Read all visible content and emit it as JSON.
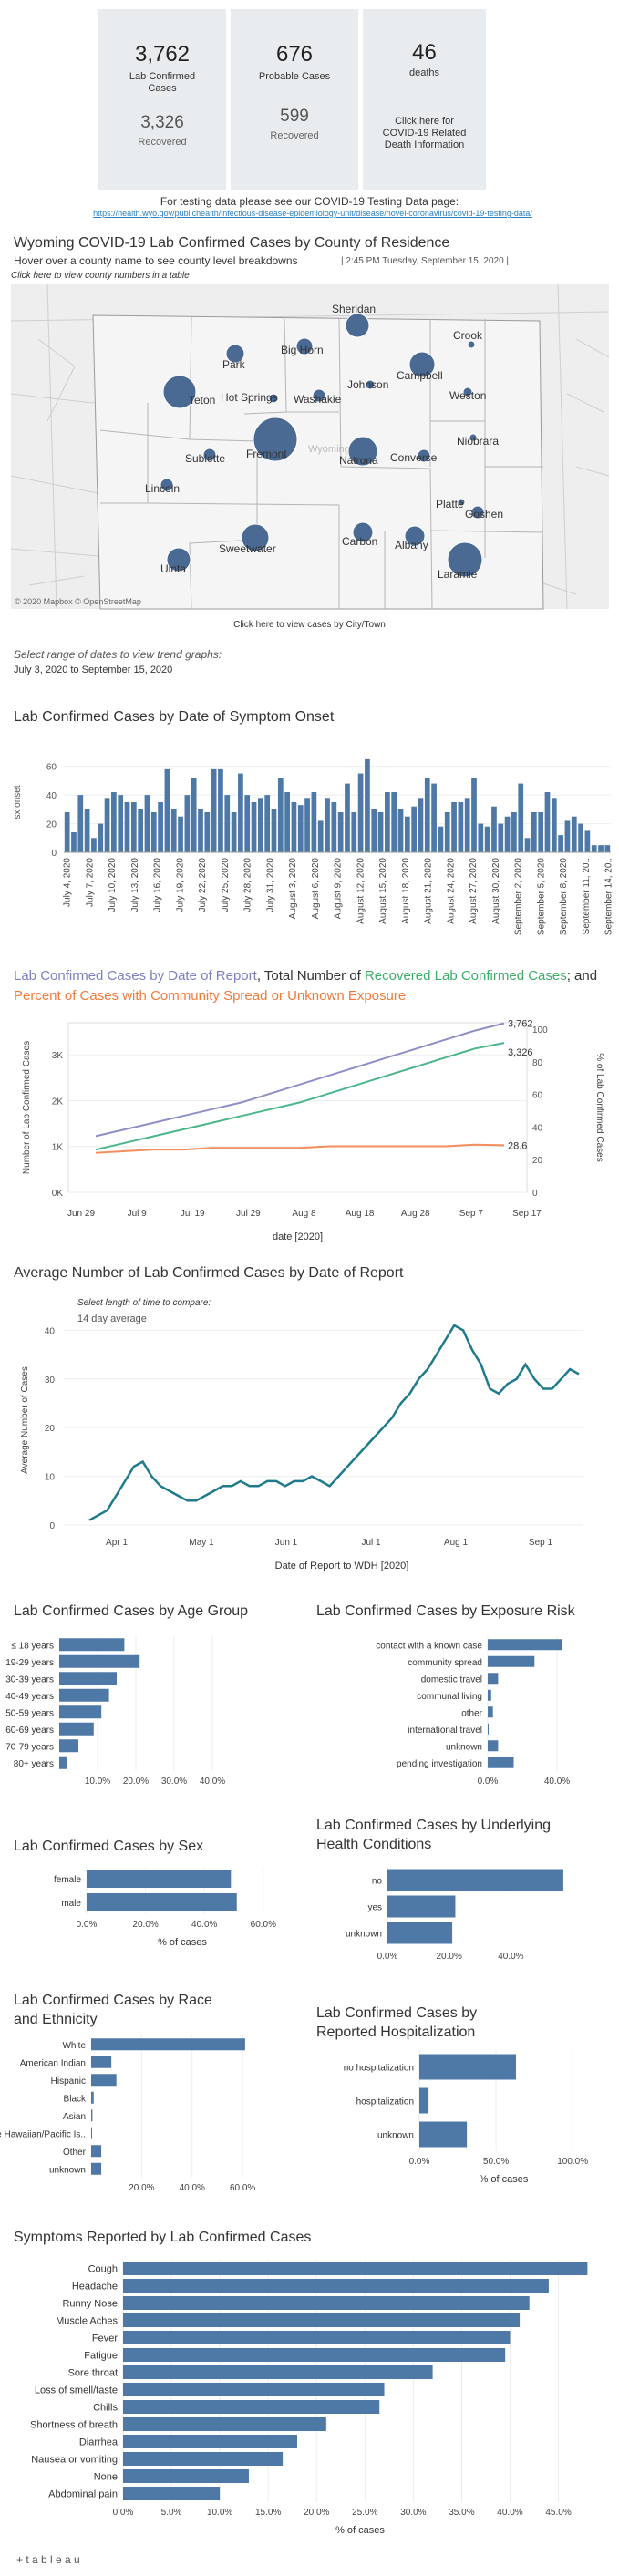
{
  "stats": {
    "lab_confirmed": "3,762",
    "lab_confirmed_label": "Lab Confirmed Cases",
    "recovered": "3,326",
    "recovered_label": "Recovered",
    "probable": "676",
    "probable_label": "Probable Cases",
    "probable_recovered": "599",
    "probable_recovered_label": "Recovered",
    "deaths": "46",
    "deaths_label": "deaths",
    "death_info": "Click here for COVID-19 Related Death Information"
  },
  "testing_note": "For testing data please see our COVID-19 Testing Data page:",
  "testing_url": "https://health.wyo.gov/publichealth/infectious-disease-epidemiology-unit/disease/novel-coronavirus/covid-19-testing-data/",
  "map": {
    "title": "Wyoming COVID-19 Lab Confirmed Cases by County of Residence",
    "hover_note": "Hover over a county name to see county level breakdowns",
    "timestamp": "| 2:45 PM Tuesday, September 15, 2020 |",
    "table_link": "Click here to view county numbers in a table",
    "attribution": "© 2020 Mapbox © OpenStreetMap",
    "state_label": "Wyoming",
    "counties": [
      "Teton",
      "Park",
      "Big Horn",
      "Sheridan",
      "Campbell",
      "Crook",
      "Johnson",
      "Washakie",
      "Hot Springs",
      "Weston",
      "Fremont",
      "Natrona",
      "Niobrara",
      "Converse",
      "Sublette",
      "Lincoln",
      "Platte",
      "Goshen",
      "Sweetwater",
      "Carbon",
      "Albany",
      "Laramie",
      "Uinta"
    ],
    "city_link": "Click here to view cases by City/Town"
  },
  "date_range": {
    "label": "Select range of dates to view trend graphs:",
    "value": "July 3, 2020 to September 15, 2020"
  },
  "colors": {
    "bar": "#4e79a7",
    "total": "#8e8fc6",
    "recovered": "#4cb68b",
    "pct": "#f28e5b",
    "avg": "#1f7a8c"
  },
  "chart_data": [
    {
      "type": "bar",
      "title": "Lab Confirmed Cases by Date of Symptom Onset",
      "ylabel": "sx onset",
      "ylim": [
        0,
        70
      ],
      "x_tick_labels": [
        "July 4, 2020",
        "July 7, 2020",
        "July 10, 2020",
        "July 13, 2020",
        "July 16, 2020",
        "July 19, 2020",
        "July 22, 2020",
        "July 25, 2020",
        "July 28, 2020",
        "July 31, 2020",
        "August 3, 2020",
        "August 6, 2020",
        "August 9, 2020",
        "August 12, 2020",
        "August 15, 2020",
        "August 18, 2020",
        "August 21, 2020",
        "August 24, 2020",
        "August 27, 2020",
        "August 30, 2020",
        "September 2, 2020",
        "September 5, 2020",
        "September 8, 2020",
        "September 11, 20..",
        "September 14, 20.."
      ],
      "y_ticks": [
        0,
        20,
        40,
        60
      ],
      "values": [
        28,
        14,
        40,
        30,
        10,
        20,
        38,
        42,
        40,
        35,
        35,
        30,
        40,
        28,
        35,
        58,
        30,
        25,
        40,
        52,
        30,
        28,
        58,
        58,
        40,
        28,
        55,
        40,
        35,
        38,
        40,
        30,
        52,
        42,
        35,
        33,
        38,
        42,
        22,
        38,
        35,
        28,
        48,
        28,
        55,
        65,
        30,
        28,
        42,
        42,
        30,
        25,
        32,
        38,
        52,
        48,
        18,
        28,
        35,
        35,
        38,
        52,
        20,
        18,
        32,
        20,
        25,
        28,
        48,
        10,
        28,
        28,
        42,
        38,
        12,
        22,
        25,
        20,
        15,
        5,
        5,
        5
      ]
    },
    {
      "type": "line",
      "title_parts": [
        "Lab Confirmed Cases by Date of Report",
        ", Total Number of ",
        "Recovered Lab Confirmed Cases",
        "; and ",
        "Percent of Cases with Community Spread or Unknown Exposure"
      ],
      "xlabel": "date [2020]",
      "ylabel_left": "Number of Lab Confirmed Cases",
      "ylabel_right": "% of Lab Confirmed Cases",
      "x_ticks": [
        "Jun 29",
        "Jul 9",
        "Jul 19",
        "Jul 29",
        "Aug 8",
        "Aug 18",
        "Aug 28",
        "Sep 7",
        "Sep 17"
      ],
      "y_ticks_left": [
        "0K",
        "1K",
        "2K",
        "3K"
      ],
      "y_ticks_right": [
        "0",
        "20",
        "40",
        "60",
        "80",
        "100"
      ],
      "series": [
        {
          "values": [
            1250,
            1400,
            1550,
            1700,
            1850,
            2000,
            2200,
            2400,
            2600,
            2800,
            3000,
            3200,
            3400,
            3600,
            3762
          ],
          "end_label": "3,762"
        },
        {
          "values": [
            950,
            1100,
            1250,
            1400,
            1550,
            1700,
            1850,
            2000,
            2200,
            2400,
            2600,
            2800,
            3000,
            3200,
            3326
          ],
          "end_label": "3,326"
        },
        {
          "values": [
            24,
            25,
            26,
            26,
            27,
            27,
            27,
            27,
            28,
            28,
            28,
            28,
            28,
            29,
            28.6
          ],
          "end_label": "28.6"
        }
      ]
    },
    {
      "type": "line",
      "title": "Average Number of Lab Confirmed Cases by Date of Report",
      "compare_label": "Select length of time to compare:",
      "compare_value": "14 day average",
      "xlabel": "Date of Report to WDH [2020]",
      "ylabel": "Average Number of Cases",
      "x_ticks": [
        "Apr 1",
        "May 1",
        "Jun 1",
        "Jul 1",
        "Aug 1",
        "Sep 1"
      ],
      "y_ticks": [
        0,
        10,
        20,
        30,
        40
      ],
      "values": [
        1,
        2,
        3,
        6,
        9,
        12,
        13,
        10,
        8,
        7,
        6,
        5,
        5,
        6,
        7,
        8,
        8,
        9,
        8,
        8,
        9,
        9,
        8,
        9,
        9,
        10,
        9,
        8,
        10,
        12,
        14,
        16,
        18,
        20,
        22,
        25,
        27,
        30,
        32,
        35,
        38,
        41,
        40,
        36,
        33,
        28,
        27,
        29,
        30,
        33,
        30,
        28,
        28,
        30,
        32,
        31
      ]
    },
    {
      "type": "bar",
      "title": "Lab Confirmed Cases by Age Group",
      "categories": [
        "≤ 18 years",
        "19-29 years",
        "30-39 years",
        "40-49 years",
        "50-59 years",
        "60-69 years",
        "70-79 years",
        "80+ years"
      ],
      "values": [
        17,
        21,
        15,
        13,
        11,
        9,
        5,
        2
      ],
      "x_ticks": [
        "10.0%",
        "20.0%",
        "30.0%",
        "40.0%"
      ]
    },
    {
      "type": "bar",
      "title": "Lab Confirmed Cases by Exposure Risk",
      "categories": [
        "contact with a known case",
        "community spread",
        "domestic travel",
        "communal living",
        "other",
        "international travel",
        "unknown",
        "pending investigation"
      ],
      "values": [
        43,
        27,
        6,
        2,
        3,
        0.5,
        6,
        15
      ],
      "x_ticks": [
        "0.0%",
        "40.0%"
      ]
    },
    {
      "type": "bar",
      "title": "Lab Confirmed Cases by Sex",
      "categories": [
        "female",
        "male"
      ],
      "values": [
        49,
        51
      ],
      "xlabel": "% of cases",
      "x_ticks": [
        "0.0%",
        "20.0%",
        "40.0%",
        "60.0%"
      ]
    },
    {
      "type": "bar",
      "title": "Lab Confirmed Cases by Underlying Health Conditions",
      "categories": [
        "no",
        "yes",
        "unknown"
      ],
      "values": [
        57,
        22,
        21
      ],
      "x_ticks": [
        "0.0%",
        "20.0%",
        "40.0%"
      ]
    },
    {
      "type": "bar",
      "title": "Lab Confirmed Cases by Race and Ethnicity",
      "categories": [
        "White",
        "American Indian",
        "Hispanic",
        "Black",
        "Asian",
        "Native Hawaiian/Pacific Is..",
        "Other",
        "unknown"
      ],
      "values": [
        61,
        8,
        10,
        1,
        0.5,
        0.3,
        4,
        4
      ],
      "x_ticks": [
        "20.0%",
        "40.0%",
        "60.0%"
      ]
    },
    {
      "type": "bar",
      "title": "Lab Confirmed Cases by Reported Hospitalization",
      "categories": [
        "no hospitalization",
        "hospitalization",
        "unknown"
      ],
      "values": [
        63,
        6,
        31
      ],
      "xlabel": "% of cases",
      "x_ticks": [
        "0.0%",
        "50.0%",
        "100.0%"
      ]
    },
    {
      "type": "bar",
      "title": "Symptoms Reported by Lab Confirmed Cases",
      "categories": [
        "Cough",
        "Headache",
        "Runny Nose",
        "Muscle Aches",
        "Fever",
        "Fatigue",
        "Sore throat",
        "Loss of smell/taste",
        "Chills",
        "Shortness of breath",
        "Diarrhea",
        "Nausea or vomiting",
        "None",
        "Abdominal pain"
      ],
      "values": [
        48,
        44,
        42,
        41,
        40,
        39.5,
        32,
        27,
        26.5,
        21,
        18,
        16.5,
        13,
        10
      ],
      "xlabel": "% of cases",
      "x_ticks": [
        "0.0%",
        "5.0%",
        "10.0%",
        "15.0%",
        "20.0%",
        "25.0%",
        "30.0%",
        "35.0%",
        "40.0%",
        "45.0%"
      ]
    }
  ],
  "footer": {
    "logo": "+ t a b l e a u"
  }
}
